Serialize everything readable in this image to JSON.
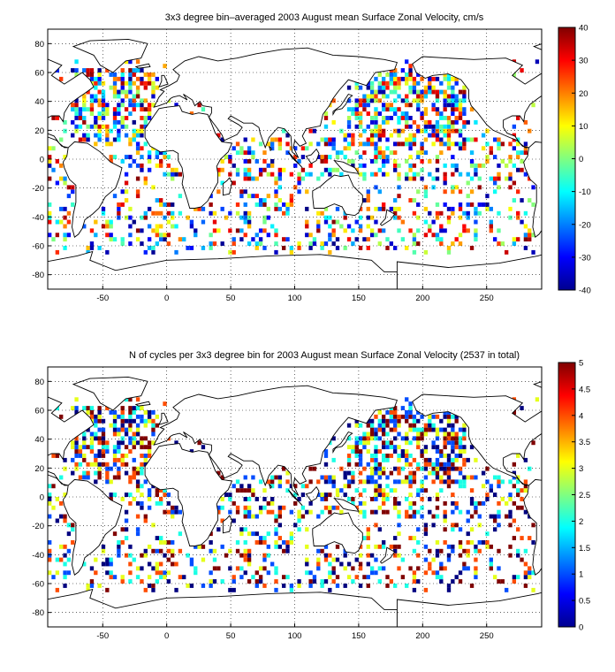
{
  "chart_data": [
    {
      "type": "heatmap",
      "title": "3x3 degree bin–averaged 2003 August mean Surface Zonal Velocity, cm/s",
      "x_ticks": [
        -50,
        0,
        50,
        100,
        150,
        200,
        250
      ],
      "y_ticks": [
        80,
        60,
        40,
        20,
        0,
        -20,
        -40,
        -60,
        -80
      ],
      "xlim": [
        -93,
        293
      ],
      "ylim": [
        -90,
        90
      ],
      "grid": true,
      "colorbar": {
        "ticks": [
          40,
          30,
          20,
          10,
          0,
          -10,
          -20,
          -30,
          -40
        ],
        "range": [
          -40,
          40
        ],
        "colormap": "jet"
      },
      "bin_size_deg": 3
    },
    {
      "type": "heatmap",
      "title": "N of cycles per 3x3 degree bin for 2003 August mean Surface Zonal Velocity (2537 in total)",
      "x_ticks": [
        -50,
        0,
        50,
        100,
        150,
        200,
        250
      ],
      "y_ticks": [
        80,
        60,
        40,
        20,
        0,
        -20,
        -40,
        -60,
        -80
      ],
      "xlim": [
        -93,
        293
      ],
      "ylim": [
        -90,
        90
      ],
      "grid": true,
      "colorbar": {
        "ticks": [
          5,
          4.5,
          4,
          3.5,
          3,
          2.5,
          2,
          1.5,
          1,
          0.5,
          0
        ],
        "range": [
          0,
          5
        ],
        "colormap": "jet"
      },
      "bin_size_deg": 3
    }
  ],
  "colors": {
    "axis": "#000000",
    "background": "#ffffff",
    "grid": "#000000"
  }
}
